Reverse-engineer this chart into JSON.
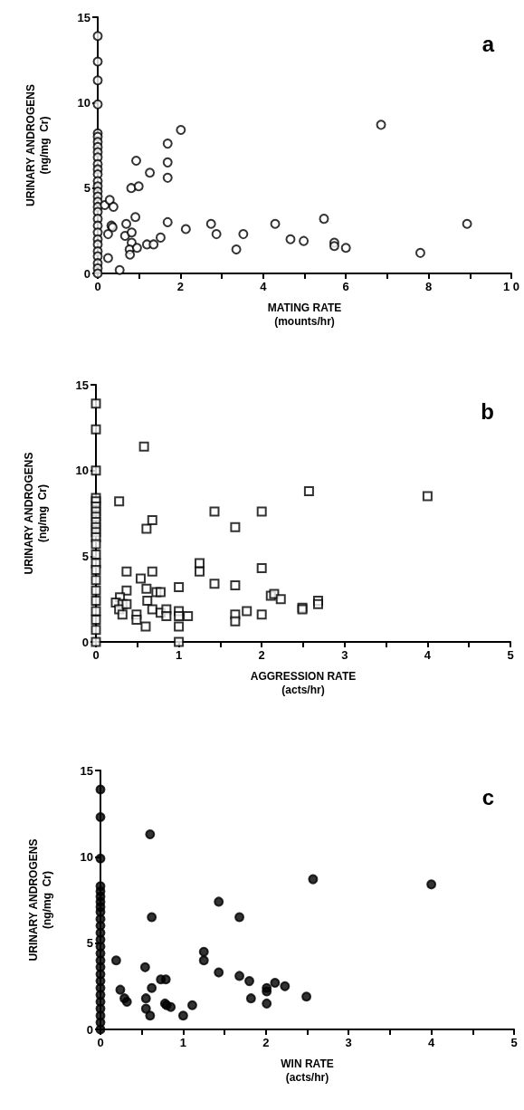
{
  "chart_data": [
    {
      "type": "scatter",
      "title": "a",
      "xlabel": "MATING RATE\n(mounts/hr)",
      "ylabel": "URINARY ANDROGENS\n(ng/mg  Cr)",
      "marker": "circle",
      "grid": false,
      "xlim": [
        0,
        10
      ],
      "ylim": [
        0,
        15
      ],
      "xticks": [
        0,
        {
          "value": 1,
          "label": null
        },
        2,
        {
          "value": 3,
          "label": null
        },
        4,
        {
          "value": 5,
          "label": null
        },
        6,
        {
          "value": 7,
          "label": null
        },
        8,
        {
          "value": 9,
          "label": null
        },
        {
          "value": 10,
          "label": "1 0"
        }
      ],
      "yticks": [
        0,
        5,
        10,
        15
      ],
      "series": [
        {
          "color": "#ffffff",
          "x": [
            0,
            0,
            0,
            0,
            0,
            0,
            0,
            0,
            0,
            0,
            0,
            0,
            0,
            0,
            0,
            0,
            0,
            0,
            0,
            0,
            0,
            0,
            0,
            0,
            0,
            0,
            0,
            0,
            0,
            0,
            0.17,
            0.29,
            0.38,
            0.33,
            0.36,
            0.25,
            0.25,
            0.53,
            0.69,
            0.66,
            0.82,
            0.82,
            0.77,
            0.78,
            0.95,
            0.91,
            0.81,
            0.99,
            0.93,
            1.26,
            1.19,
            1.35,
            1.52,
            1.69,
            1.69,
            1.69,
            1.69,
            2.01,
            2.13,
            2.74,
            2.87,
            3.35,
            3.52,
            4.29,
            4.66,
            4.98,
            5.47,
            5.72,
            5.72,
            6.0,
            6.85,
            7.8,
            8.93
          ],
          "values": [
            13.9,
            12.4,
            11.3,
            9.9,
            8.2,
            8.0,
            7.7,
            7.4,
            7.1,
            6.8,
            6.4,
            6.1,
            5.8,
            5.4,
            5.1,
            4.8,
            4.5,
            4.2,
            3.9,
            3.6,
            3.2,
            2.8,
            2.4,
            2.0,
            1.7,
            1.3,
            1.0,
            0.6,
            0.3,
            0,
            4.0,
            4.3,
            3.9,
            2.8,
            2.7,
            2.3,
            0.9,
            0.2,
            2.9,
            2.2,
            2.4,
            1.8,
            1.4,
            1.1,
            1.5,
            3.3,
            5.0,
            5.1,
            6.6,
            5.9,
            1.7,
            1.7,
            2.1,
            7.6,
            6.5,
            5.6,
            3.0,
            8.4,
            2.6,
            2.9,
            2.3,
            1.4,
            2.3,
            2.9,
            2.0,
            1.9,
            3.2,
            1.8,
            1.6,
            1.5,
            8.7,
            1.2,
            2.9
          ]
        }
      ]
    },
    {
      "type": "scatter",
      "title": "b",
      "xlabel": "AGGRESSION RATE\n(acts/hr)",
      "ylabel": "URINARY ANDROGENS\n(ng/mg  Cr)",
      "marker": "square",
      "grid": false,
      "xlim": [
        0,
        5
      ],
      "ylim": [
        0,
        15
      ],
      "xticks": [
        0,
        {
          "value": 0.5,
          "label": null
        },
        1,
        {
          "value": 1.5,
          "label": null
        },
        2,
        {
          "value": 2.5,
          "label": null
        },
        3,
        {
          "value": 3.5,
          "label": null
        },
        4,
        {
          "value": 4.5,
          "label": null
        },
        5
      ],
      "yticks": [
        0,
        5,
        10,
        15
      ],
      "series": [
        {
          "color": "#ffffff",
          "x": [
            0,
            0,
            0,
            0,
            0,
            0,
            0,
            0,
            0,
            0,
            0,
            0,
            0,
            0,
            0,
            0,
            0,
            0,
            0,
            0,
            0,
            0,
            0,
            0.28,
            0.58,
            0.61,
            0.68,
            0.37,
            0.37,
            0.29,
            0.24,
            0.32,
            0.28,
            0.32,
            0.37,
            0.49,
            0.49,
            0.54,
            0.6,
            0.61,
            0.62,
            0.68,
            0.68,
            0.73,
            0.78,
            0.78,
            0.85,
            0.85,
            1.0,
            1.0,
            1.0,
            1.0,
            1.0,
            1.11,
            1.25,
            1.25,
            1.43,
            1.43,
            1.68,
            1.68,
            1.68,
            1.68,
            1.82,
            2.0,
            2.0,
            2.0,
            2.11,
            2.15,
            2.23,
            2.49,
            2.49,
            2.68,
            2.68,
            2.57,
            4.0
          ],
          "values": [
            13.9,
            12.4,
            10.0,
            8.4,
            8.2,
            7.9,
            7.6,
            7.3,
            7.0,
            6.7,
            6.4,
            6.1,
            5.7,
            5.1,
            4.6,
            4.2,
            3.6,
            3.0,
            2.4,
            1.8,
            1.3,
            0.7,
            0,
            8.2,
            11.4,
            6.6,
            7.1,
            4.1,
            3.0,
            2.6,
            2.3,
            2.2,
            1.9,
            1.6,
            2.2,
            1.6,
            1.3,
            3.7,
            0.9,
            3.1,
            2.4,
            4.1,
            1.9,
            2.9,
            2.9,
            1.7,
            1.9,
            1.5,
            3.2,
            1.8,
            1.5,
            0.9,
            0,
            1.5,
            4.6,
            4.1,
            7.6,
            3.4,
            6.7,
            3.3,
            1.6,
            1.2,
            1.8,
            7.6,
            4.3,
            1.6,
            2.7,
            2.8,
            2.5,
            2.0,
            1.9,
            2.4,
            2.2,
            8.8,
            8.5
          ]
        }
      ]
    },
    {
      "type": "scatter",
      "title": "c",
      "xlabel": "WIN RATE\n(acts/hr)",
      "ylabel": "URINARY ANDROGENS\n(ng/mg  Cr)",
      "marker": "circle",
      "grid": false,
      "xlim": [
        0,
        5
      ],
      "ylim": [
        0,
        15
      ],
      "xticks": [
        0,
        {
          "value": 0.5,
          "label": null
        },
        1,
        {
          "value": 1.5,
          "label": null
        },
        2,
        {
          "value": 2.5,
          "label": null
        },
        3,
        {
          "value": 3.5,
          "label": null
        },
        4,
        {
          "value": 4.5,
          "label": null
        },
        5
      ],
      "yticks": [
        0,
        5,
        10,
        15
      ],
      "series": [
        {
          "color": "#000000",
          "x": [
            0,
            0,
            0,
            0,
            0,
            0,
            0,
            0,
            0,
            0,
            0,
            0,
            0,
            0,
            0,
            0,
            0,
            0,
            0,
            0,
            0,
            0,
            0,
            0,
            0,
            0,
            0.19,
            0.6,
            0.62,
            0.24,
            0.29,
            0.32,
            0.54,
            0.62,
            0.55,
            0.55,
            0.6,
            0.73,
            0.79,
            0.78,
            0.8,
            0.85,
            1.0,
            1.11,
            1.25,
            1.25,
            1.43,
            1.43,
            1.68,
            1.68,
            1.8,
            1.82,
            2.01,
            2.01,
            2.01,
            2.11,
            2.23,
            2.49,
            2.57,
            4.0
          ],
          "values": [
            13.9,
            12.3,
            9.9,
            8.3,
            8.0,
            7.7,
            7.4,
            7.1,
            6.8,
            6.4,
            6.0,
            5.6,
            5.2,
            4.8,
            4.4,
            4.0,
            3.6,
            3.2,
            2.8,
            2.4,
            2.0,
            1.6,
            1.2,
            0.8,
            0.4,
            0,
            4.0,
            11.3,
            6.5,
            2.3,
            1.8,
            1.6,
            3.6,
            2.4,
            1.8,
            1.2,
            0.8,
            2.9,
            2.9,
            1.5,
            1.4,
            1.3,
            0.8,
            1.4,
            4.5,
            4.0,
            7.4,
            3.3,
            6.5,
            3.1,
            2.8,
            1.8,
            2.4,
            2.2,
            1.5,
            2.7,
            2.5,
            1.9,
            8.7,
            8.4
          ]
        }
      ]
    }
  ]
}
